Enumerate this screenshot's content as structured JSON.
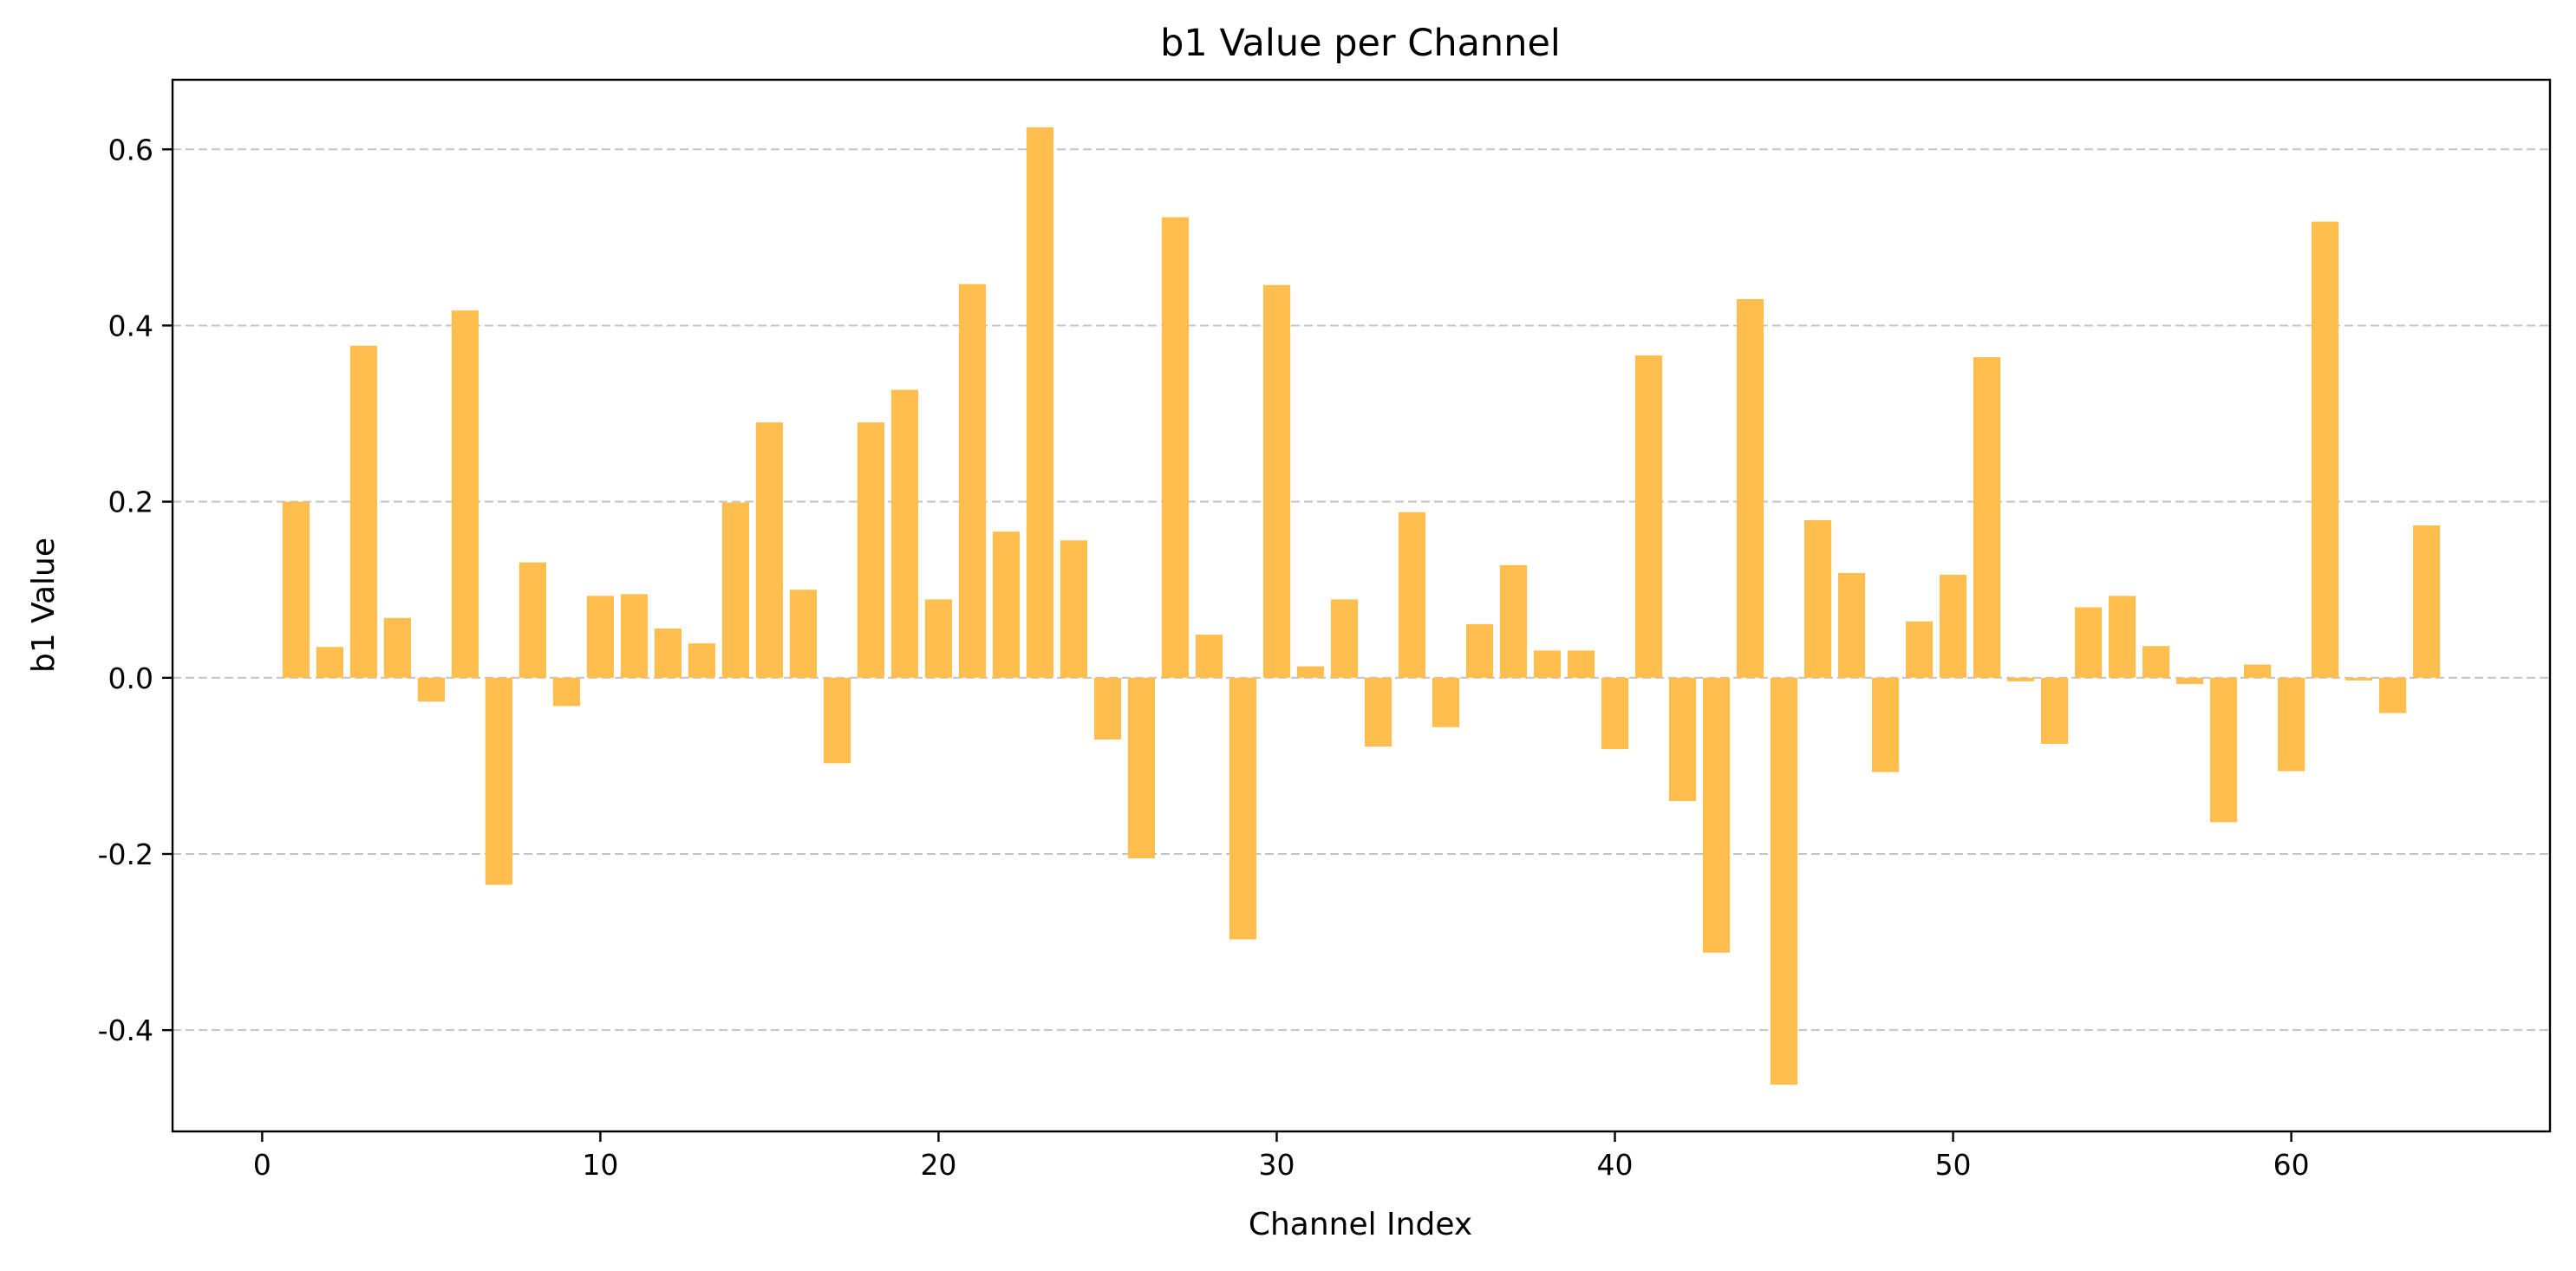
{
  "chart_data": {
    "type": "bar",
    "title": "b1 Value per Channel",
    "xlabel": "Channel Index",
    "ylabel": "b1 Value",
    "x": [
      1,
      2,
      3,
      4,
      5,
      6,
      7,
      8,
      9,
      10,
      11,
      12,
      13,
      14,
      15,
      16,
      17,
      18,
      19,
      20,
      21,
      22,
      23,
      24,
      25,
      26,
      27,
      28,
      29,
      30,
      31,
      32,
      33,
      34,
      35,
      36,
      37,
      38,
      39,
      40,
      41,
      42,
      43,
      44,
      45,
      46,
      47,
      48,
      49,
      50,
      51,
      52,
      53,
      54,
      55,
      56,
      57,
      58,
      59,
      60,
      61,
      62,
      63,
      64
    ],
    "values": [
      0.2,
      0.035,
      0.377,
      0.068,
      -0.027,
      0.417,
      -0.235,
      0.131,
      -0.032,
      0.093,
      0.095,
      0.056,
      0.039,
      0.199,
      0.29,
      0.1,
      -0.097,
      0.29,
      0.327,
      0.089,
      0.447,
      0.166,
      0.625,
      0.156,
      -0.07,
      -0.205,
      0.523,
      0.049,
      -0.297,
      0.446,
      0.013,
      0.089,
      -0.078,
      0.188,
      -0.056,
      0.061,
      0.128,
      0.031,
      0.031,
      -0.081,
      0.366,
      -0.14,
      -0.312,
      0.43,
      -0.462,
      0.179,
      0.119,
      -0.107,
      0.064,
      0.117,
      0.364,
      -0.004,
      -0.075,
      0.08,
      0.093,
      0.036,
      -0.007,
      -0.164,
      0.015,
      -0.106,
      0.518,
      -0.003,
      -0.04,
      0.173
    ],
    "xlim": [
      -2.65,
      67.65
    ],
    "ylim": [
      -0.515,
      0.679
    ],
    "xticks": [
      0,
      10,
      20,
      30,
      40,
      50,
      60
    ],
    "xtick_labels": [
      "0",
      "10",
      "20",
      "30",
      "40",
      "50",
      "60"
    ],
    "yticks": [
      -0.4,
      -0.2,
      0.0,
      0.2,
      0.4,
      0.6
    ],
    "ytick_labels": [
      "-0.4",
      "-0.2",
      "0.0",
      "0.2",
      "0.4",
      "0.6"
    ],
    "bar_color": "#ffbe4d",
    "grid": "y-dashed",
    "legend": "none"
  }
}
